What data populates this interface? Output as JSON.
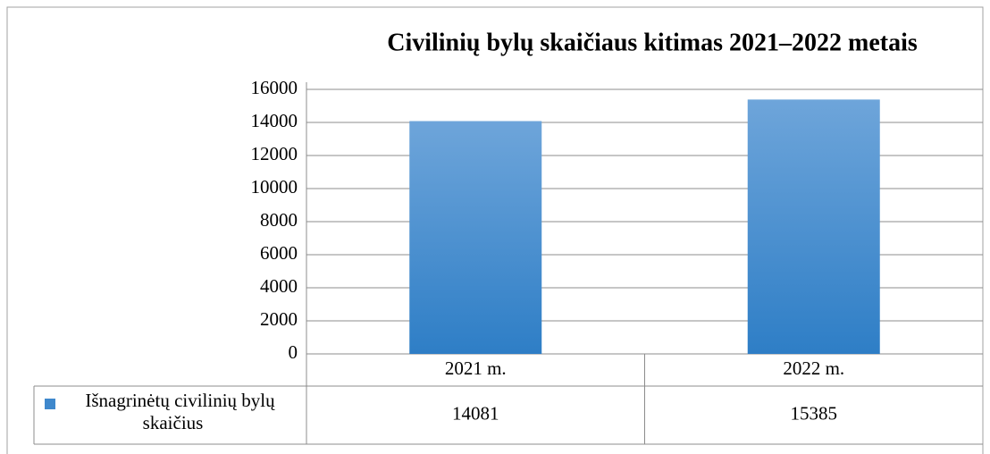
{
  "chart_data": {
    "type": "bar",
    "title": "Civilinių bylų skaičiaus kitimas 2021–2022 metais",
    "categories": [
      "2021 m.",
      "2022 m."
    ],
    "series": [
      {
        "name": "Išnagrinėtų civilinių bylų skaičius",
        "color": "#3f88cc",
        "values": [
          14081,
          15385
        ]
      }
    ],
    "ylim": [
      0,
      16000
    ],
    "yticks": [
      0,
      2000,
      4000,
      6000,
      8000,
      10000,
      12000,
      14000,
      16000
    ],
    "grid": true
  }
}
